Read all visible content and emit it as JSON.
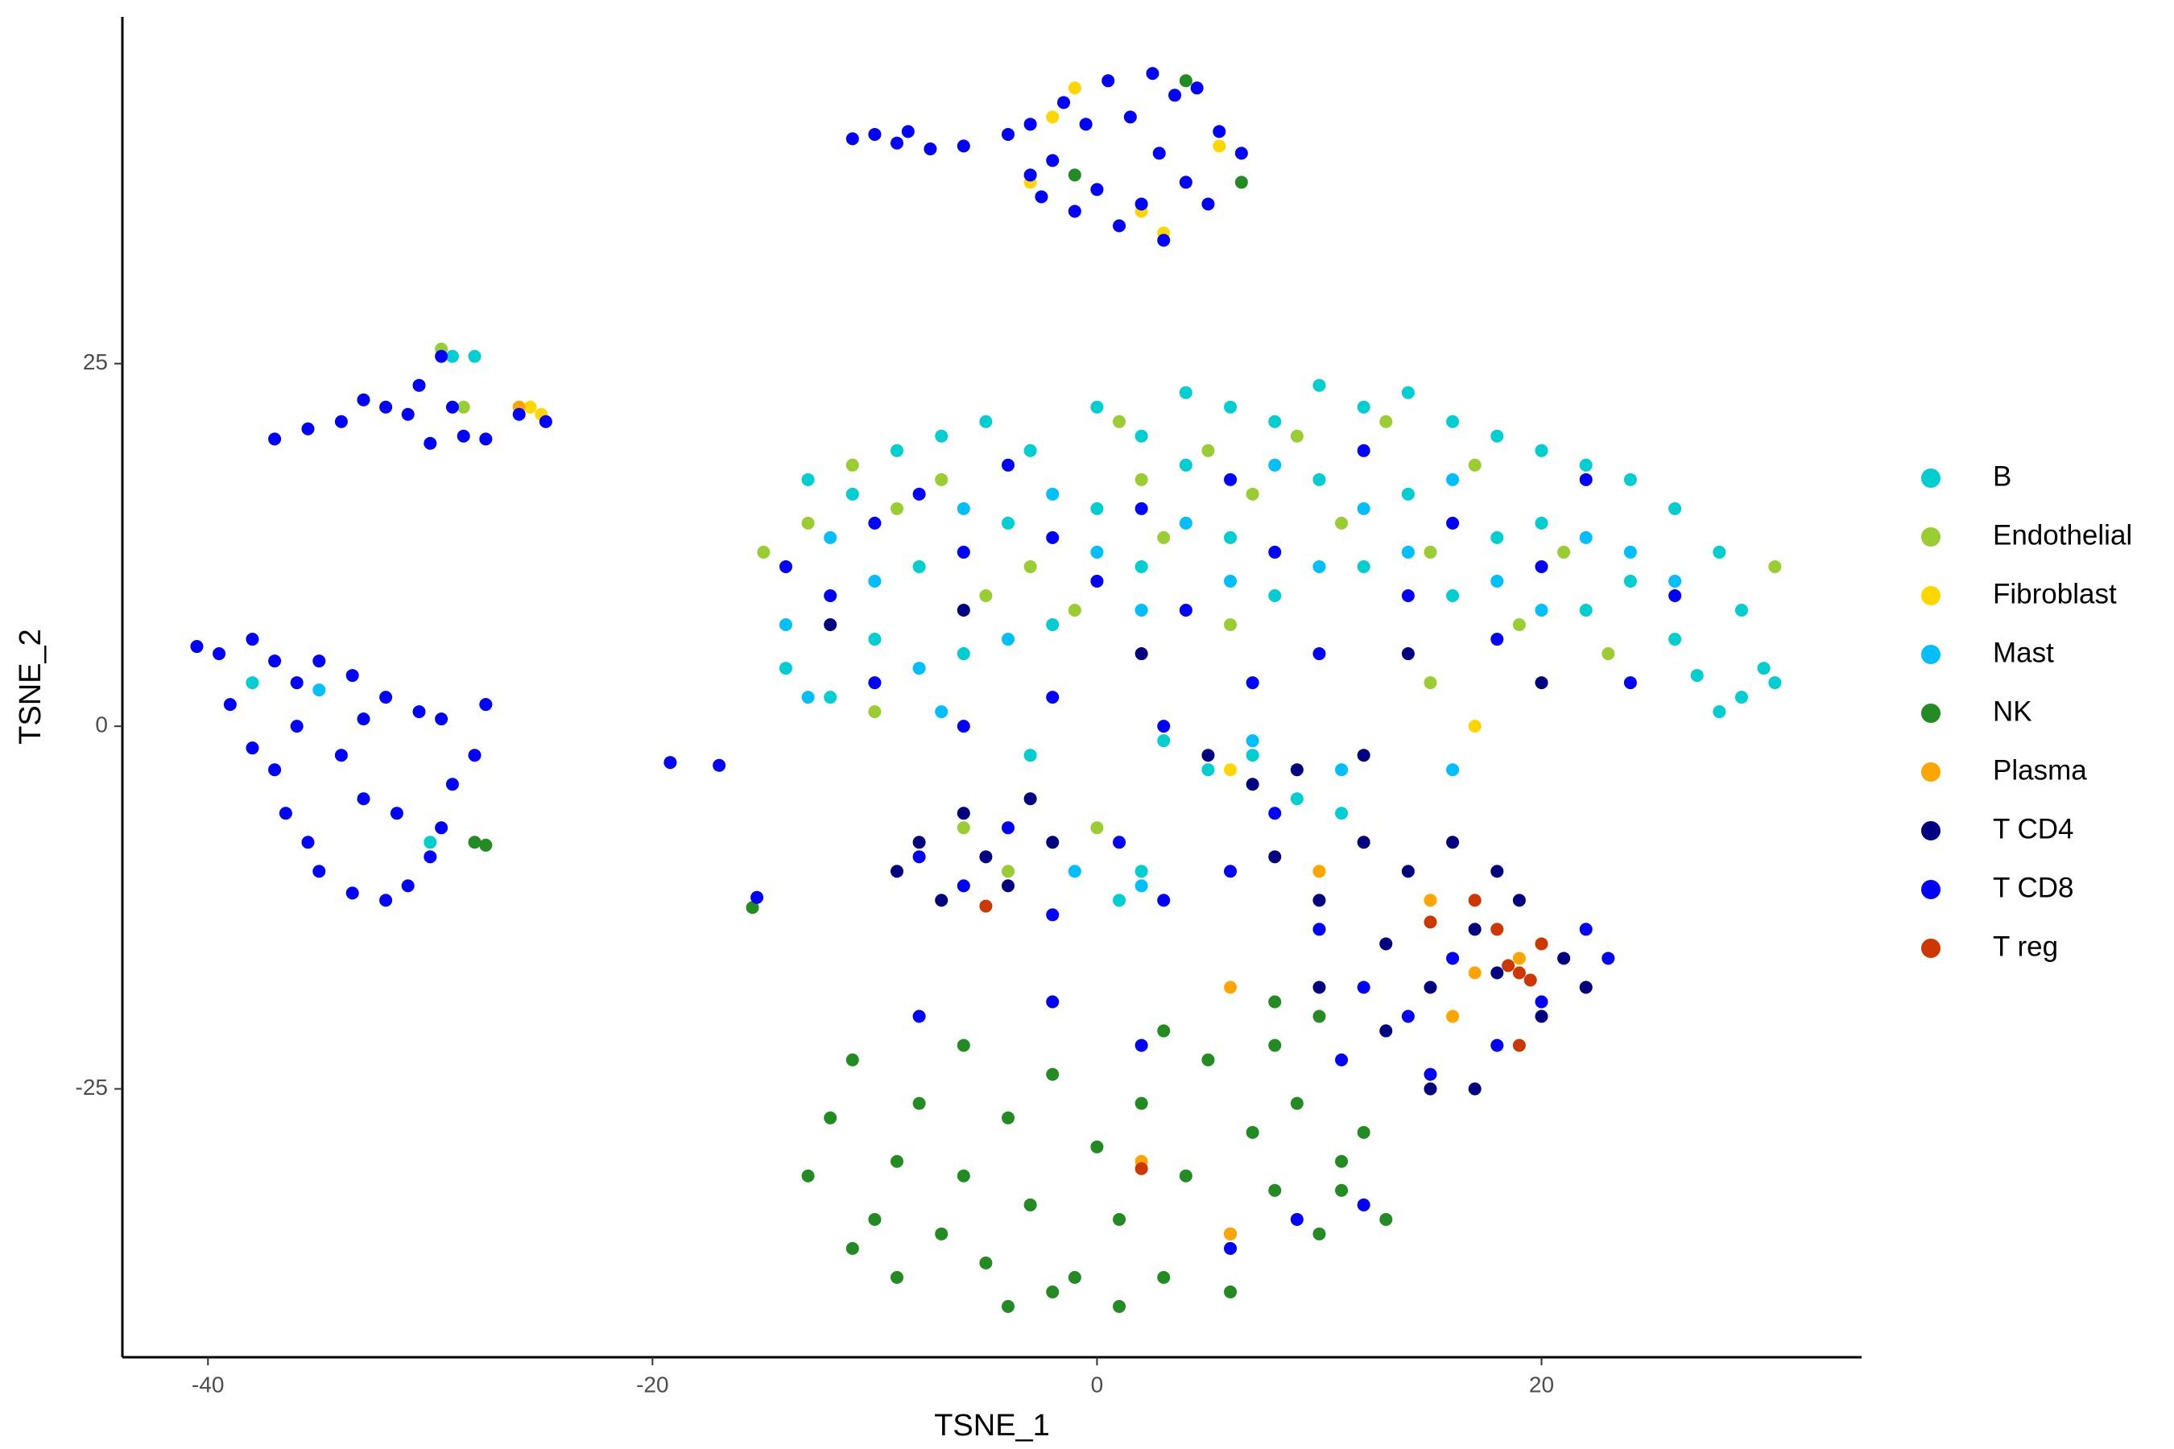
{
  "chart_data": {
    "type": "scatter",
    "x_label": "TSNE_1",
    "y_label": "TSNE_2",
    "xlim": [
      -43.85,
      34.4
    ],
    "ylim": [
      -43.5,
      48.9
    ],
    "xticks": [
      -40,
      -20,
      0,
      20
    ],
    "yticks": [
      -25,
      0,
      25
    ],
    "grid": false,
    "legend": "right",
    "series": [
      {
        "name": "B",
        "color": "#00CED1",
        "x": [
          -13,
          -11,
          -9,
          -7,
          -5,
          -3,
          0,
          2,
          4,
          6,
          8,
          10,
          12,
          14,
          16,
          18,
          20,
          22,
          24,
          26,
          28,
          29,
          30,
          29,
          28,
          27,
          30.5,
          26,
          24,
          22,
          20,
          18,
          16,
          14,
          12,
          10,
          8,
          6,
          4,
          2,
          0,
          -2,
          -4,
          -6,
          -8,
          -10,
          -12,
          -14,
          3,
          5,
          7,
          9,
          11,
          -3,
          2,
          1,
          -29,
          -28,
          -38,
          -27.5,
          -30
        ],
        "y": [
          17,
          16,
          19,
          20,
          21,
          19,
          22,
          20,
          23,
          22,
          21,
          23.5,
          22,
          23,
          21,
          20,
          19,
          18,
          17,
          15,
          12,
          8,
          4,
          2,
          1,
          3.5,
          3,
          6,
          10,
          8,
          14,
          13,
          9,
          16,
          11,
          17,
          9,
          13,
          18,
          11,
          15,
          7,
          14,
          5,
          11,
          6,
          2,
          4,
          -1,
          -3,
          -2,
          -5,
          -6,
          -2,
          -10,
          -12,
          25.5,
          25.5,
          3,
          1.5,
          -8
        ]
      },
      {
        "name": "Endothelial",
        "color": "#9ACD32",
        "x": [
          -15,
          -13,
          -11,
          -9,
          -7,
          -5,
          -3,
          -1,
          1,
          3,
          5,
          7,
          9,
          11,
          13,
          15,
          17,
          19,
          21,
          23,
          -10,
          -6,
          -4,
          2,
          6,
          30.5,
          -29.5,
          -28.5,
          0,
          15
        ],
        "y": [
          12,
          14,
          18,
          15,
          17,
          9,
          11,
          8,
          21,
          13,
          19,
          16,
          20,
          14,
          21,
          12,
          18,
          7,
          12,
          5,
          1,
          -7,
          -10,
          17,
          7,
          11,
          26,
          22,
          -7,
          3
        ]
      },
      {
        "name": "Fibroblast",
        "color": "#FFD700",
        "x": [
          -25.5,
          -25,
          -26,
          -3,
          -2,
          3,
          5.5,
          -1,
          2,
          17,
          6
        ],
        "y": [
          22,
          21.5,
          22,
          37.5,
          42,
          34,
          40,
          44,
          35.5,
          0,
          -3
        ]
      },
      {
        "name": "Mast",
        "color": "#00BFFF",
        "x": [
          -14,
          -12,
          -10,
          -8,
          -6,
          -4,
          -2,
          0,
          2,
          4,
          6,
          8,
          10,
          12,
          14,
          16,
          18,
          20,
          22,
          24,
          26,
          -13,
          -7,
          7,
          11,
          16,
          -1,
          2,
          -35
        ],
        "y": [
          7,
          13,
          10,
          4,
          15,
          6,
          16,
          12,
          8,
          14,
          10,
          18,
          11,
          15,
          12,
          17,
          10,
          8,
          13,
          12,
          10,
          2,
          1,
          -1,
          -3,
          -3,
          -10,
          -11,
          2.5
        ]
      },
      {
        "name": "NK",
        "color": "#228B22",
        "x": [
          -13,
          -12,
          -11,
          -10,
          -9,
          -8,
          -7,
          -6,
          -5,
          -4,
          -3,
          -2,
          -1,
          0,
          1,
          2,
          3,
          4,
          5,
          6,
          7,
          8,
          9,
          10,
          11,
          12,
          13,
          -9,
          -6,
          -2,
          3,
          8,
          -11,
          11,
          6,
          1,
          -4,
          -28,
          -27.5,
          -15.5,
          4,
          6.5,
          -1,
          10,
          8
        ],
        "y": [
          -31,
          -27,
          -23,
          -34,
          -30,
          -26,
          -35,
          -31,
          -37,
          -27,
          -33,
          -24,
          -38,
          -29,
          -34,
          -26,
          -38,
          -31,
          -23,
          -35,
          -28,
          -32,
          -26,
          -35,
          -30,
          -28,
          -34,
          -38,
          -22,
          -39,
          -21,
          -22,
          -36,
          -32,
          -39,
          -40,
          -40,
          -8,
          -8.2,
          -12.5,
          44.5,
          37.5,
          38,
          -20,
          -19
        ]
      },
      {
        "name": "Plasma",
        "color": "#FFA500",
        "x": [
          -19.2,
          6,
          10,
          15,
          17,
          19,
          22,
          16,
          2,
          6,
          -26
        ],
        "y": [
          -2.5,
          -18,
          -10,
          -12,
          -17,
          -16,
          -18,
          -20,
          -30,
          -35,
          22
        ]
      },
      {
        "name": "T CD4",
        "color": "#000080",
        "x": [
          -9,
          -8,
          -7,
          -6,
          -5,
          -4,
          -3,
          -2,
          5,
          7,
          8,
          9,
          10,
          12,
          13,
          14,
          15,
          16,
          17,
          18,
          19,
          20,
          21,
          22,
          13,
          15,
          17,
          12,
          10,
          18,
          -6,
          2,
          14,
          20,
          -12
        ],
        "y": [
          -10,
          -8,
          -12,
          -6,
          -9,
          -11,
          -5,
          -8,
          -2,
          -4,
          -9,
          -3,
          -12,
          -8,
          -15,
          -10,
          -18,
          -8,
          -14,
          -17,
          -12,
          -20,
          -16,
          -18,
          -21,
          -25,
          -25,
          -2,
          -18,
          -10,
          8,
          5,
          5,
          3,
          7
        ]
      },
      {
        "name": "T CD8",
        "color": "#0000FF",
        "x": [
          -11,
          -10,
          -9,
          -8.5,
          -7.5,
          -6,
          -4,
          -3,
          -2,
          -1.5,
          -0.5,
          0.5,
          1.5,
          2.5,
          3.5,
          4.5,
          5.5,
          6.5,
          -2.5,
          -1,
          0,
          1,
          2,
          3,
          4,
          5,
          -3,
          2.8,
          -37,
          -35.5,
          -34,
          -33,
          -32,
          -31,
          -30.5,
          -29.5,
          -29,
          -30,
          -28.5,
          -27.5,
          -26,
          -24.8,
          -40.5,
          -39.5,
          -38,
          -37,
          -36,
          -35,
          -33.5,
          -32,
          -30.5,
          -29.5,
          -39,
          -38,
          -37,
          -36.5,
          -35.5,
          -35,
          -33.5,
          -32,
          -31,
          -30,
          -29.5,
          -29,
          -28,
          -34,
          -33,
          -31.5,
          -36,
          -33,
          -27.5,
          -17,
          -15.3,
          -19.2,
          -14,
          -12,
          -10,
          -8,
          -6,
          -4,
          -2,
          0,
          2,
          4,
          6,
          8,
          10,
          12,
          14,
          16,
          18,
          20,
          22,
          24,
          26,
          -10,
          -6,
          -2,
          3,
          7,
          -8,
          -6,
          -4,
          -2,
          1,
          3,
          6,
          8,
          10,
          12,
          14,
          16,
          18,
          20,
          22,
          23,
          11,
          15,
          -8,
          -2,
          2,
          9,
          12,
          6
        ],
        "y": [
          40.5,
          40.8,
          40.2,
          41,
          39.8,
          40,
          40.8,
          41.5,
          39,
          43,
          41.5,
          44.5,
          42,
          45,
          43.5,
          44,
          41,
          39.5,
          36.5,
          35.5,
          37,
          34.5,
          36,
          33.5,
          37.5,
          36,
          38,
          39.5,
          19.8,
          20.5,
          21,
          22.5,
          22,
          21.5,
          23.5,
          25.5,
          22,
          19.5,
          20,
          19.8,
          21.5,
          21,
          5.5,
          5,
          6,
          4.5,
          3,
          4.5,
          3.5,
          2,
          1,
          0.5,
          1.5,
          -1.5,
          -3,
          -6,
          -8,
          -10,
          -11.5,
          -12,
          -11,
          -9,
          -7,
          -4,
          -2,
          -2,
          -5,
          -6,
          0,
          0.5,
          1.5,
          -2.7,
          -11.8,
          -2.5,
          11,
          9,
          14,
          16,
          12,
          18,
          13,
          10,
          15,
          8,
          17,
          12,
          5,
          19,
          9,
          14,
          6,
          11,
          17,
          3,
          9,
          3,
          0,
          2,
          0,
          3,
          -9,
          -11,
          -7,
          -13,
          -8,
          -12,
          -10,
          -6,
          -14,
          -18,
          -20,
          -16,
          -22,
          -19,
          -14,
          -16,
          -23,
          -24,
          -20,
          -19,
          -22,
          -34,
          -33,
          -36
        ]
      },
      {
        "name": "T reg",
        "color": "#CD3700",
        "x": [
          -5,
          18,
          18.5,
          19,
          19.5,
          20,
          17,
          15,
          2,
          19
        ],
        "y": [
          -12.4,
          -14,
          -16.5,
          -17,
          -17.5,
          -15,
          -12,
          -13.5,
          -30.5,
          -22
        ]
      }
    ]
  }
}
